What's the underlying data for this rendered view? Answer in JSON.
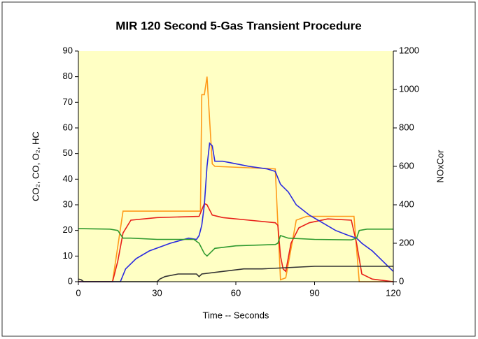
{
  "chart_data": {
    "type": "line",
    "title": "MIR 120 Second 5-Gas Transient Procedure",
    "x_label": "Time -- Seconds",
    "y_label": "CO₂, CO, O₂, HC",
    "y2_label": "NOxCor",
    "xlim": [
      0,
      120
    ],
    "xticks": [
      0,
      30,
      60,
      90,
      120
    ],
    "ylim": [
      0,
      90
    ],
    "yticks": [
      0,
      10,
      20,
      30,
      40,
      50,
      60,
      70,
      80,
      90
    ],
    "y2lim": [
      0,
      1200
    ],
    "y2ticks": [
      0,
      200,
      400,
      600,
      800,
      1000,
      1200
    ],
    "background": "#ffffc4",
    "series": [
      {
        "color": "#ff9a1a",
        "axis": "y2",
        "x": [
          0,
          13,
          17,
          46.5,
          47,
          48,
          49,
          51,
          52,
          75,
          77,
          79,
          83,
          87,
          105,
          107,
          120
        ],
        "values": [
          0,
          0,
          367,
          367,
          973,
          973,
          1067,
          613,
          600,
          587,
          10,
          20,
          320,
          340,
          340,
          0,
          0
        ]
      },
      {
        "color": "#e8201a",
        "x": [
          0,
          13,
          15,
          17,
          20,
          30,
          46,
          48,
          49,
          50,
          51,
          55,
          65,
          75,
          76,
          77,
          78,
          79,
          81,
          84,
          88,
          95,
          104,
          106,
          108,
          112,
          120
        ],
        "values": [
          0,
          0,
          8,
          19,
          24,
          25,
          25.5,
          30.5,
          30,
          28,
          26,
          25,
          24,
          23,
          22,
          10,
          5,
          4,
          15,
          21,
          23,
          24.5,
          24,
          15,
          3,
          1,
          0
        ]
      },
      {
        "color": "#2a2ae0",
        "x": [
          0,
          16,
          18,
          22,
          27,
          35,
          42,
          45,
          46,
          47,
          48,
          49,
          50,
          51,
          52,
          55,
          60,
          65,
          72,
          75,
          77,
          80,
          83,
          88,
          93,
          98,
          103,
          106,
          108,
          112,
          116,
          119,
          120
        ],
        "values": [
          0,
          0,
          5,
          9,
          12,
          15,
          17,
          16.5,
          18,
          22,
          30,
          45,
          54,
          53,
          47,
          47,
          46,
          45,
          44,
          43,
          38,
          35,
          30,
          26,
          23,
          20,
          18,
          17,
          15,
          12,
          8,
          5,
          4
        ]
      },
      {
        "color": "#2f9a2f",
        "x": [
          0,
          12,
          15,
          17,
          20,
          30,
          44,
          46,
          48,
          49,
          50,
          52,
          60,
          75,
          76,
          77,
          80,
          90,
          104,
          106,
          107,
          110,
          120
        ],
        "values": [
          20.7,
          20.5,
          20,
          17,
          17,
          16.5,
          16.5,
          15,
          11,
          10,
          11,
          13,
          14,
          14.5,
          15,
          18,
          17,
          16.5,
          16.3,
          17,
          20,
          20.5,
          20.5
        ]
      },
      {
        "color": "#333333",
        "x": [
          0,
          1,
          2,
          30,
          31,
          33,
          38,
          45,
          46,
          47,
          55,
          63,
          70,
          90,
          120
        ],
        "values": [
          1,
          0.8,
          0,
          0,
          1,
          2,
          3,
          3,
          2,
          3,
          4,
          5,
          5,
          6,
          6
        ]
      }
    ]
  }
}
